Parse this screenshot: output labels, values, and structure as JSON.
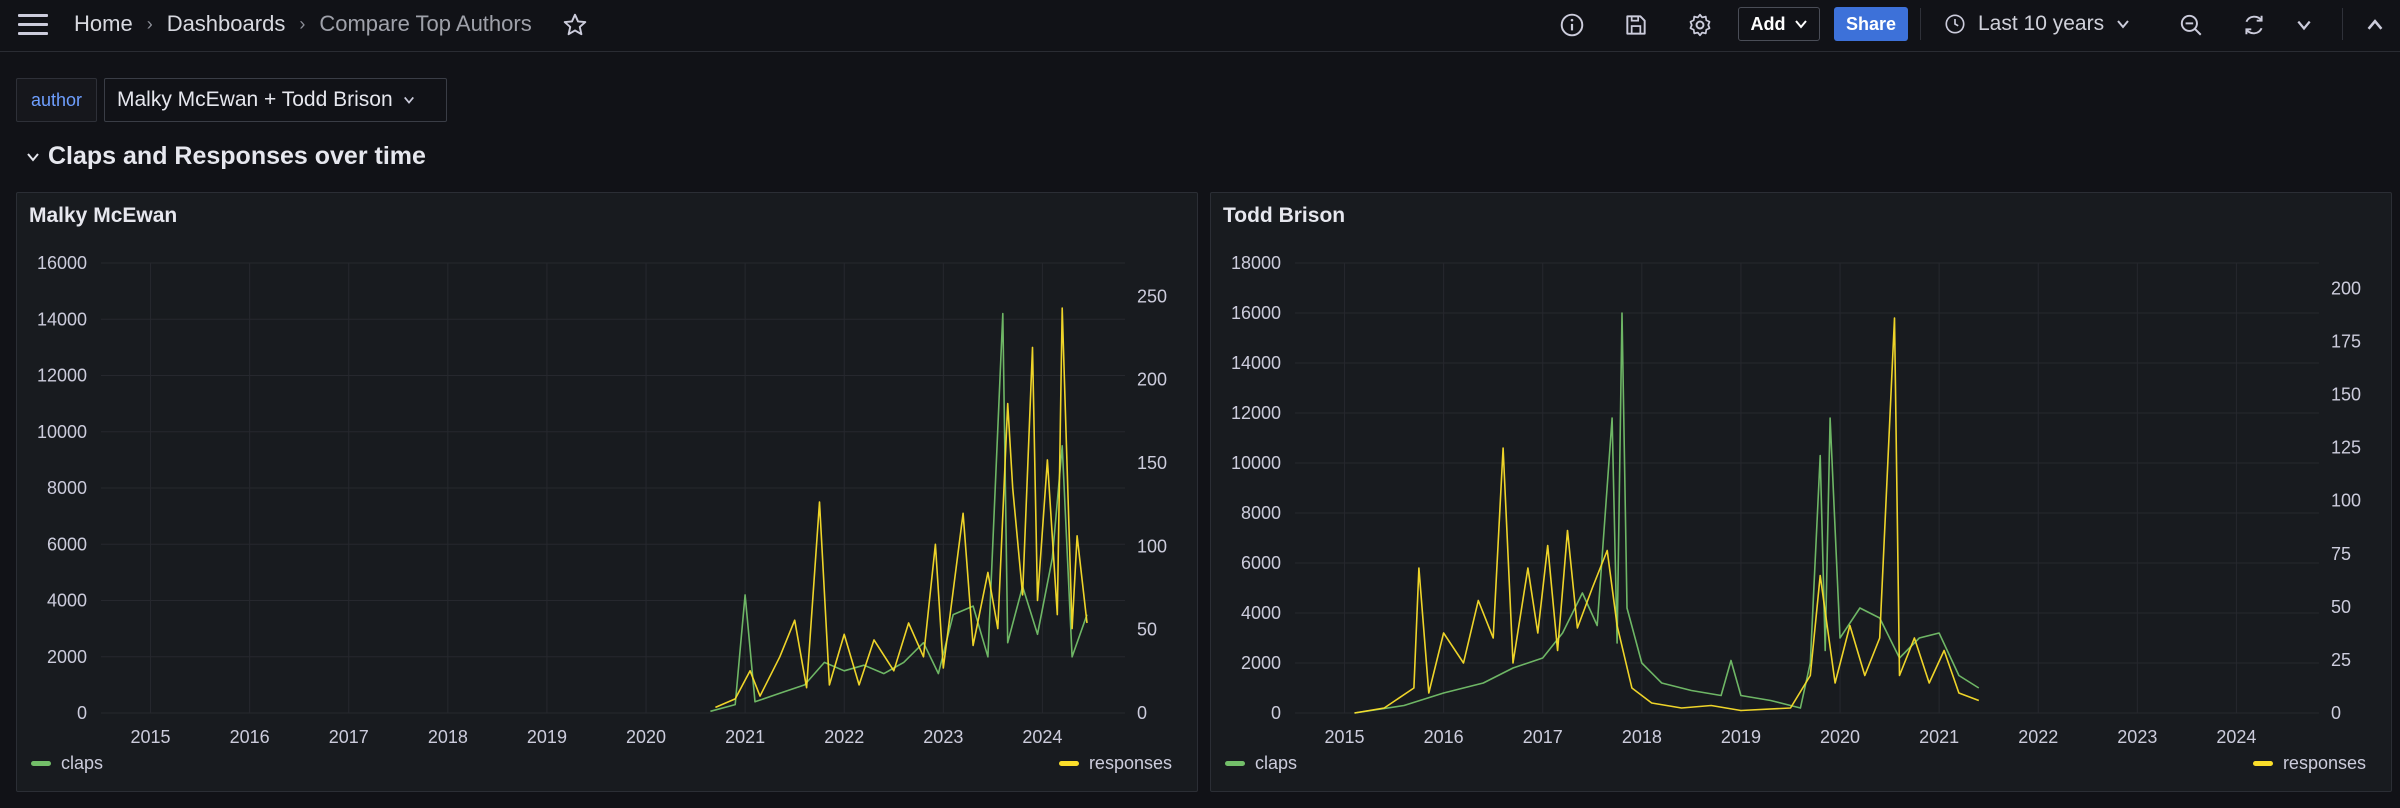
{
  "breadcrumb": {
    "home": "Home",
    "dashboards": "Dashboards",
    "current": "Compare Top Authors"
  },
  "toolbar": {
    "add_label": "Add",
    "share_label": "Share",
    "time_range": "Last 10 years"
  },
  "variable": {
    "label": "author",
    "value": "Malky McEwan + Todd Brison"
  },
  "row": {
    "title": "Claps and Responses over time"
  },
  "colors": {
    "claps": "#73bf69",
    "responses": "#fade2a"
  },
  "chart_data": [
    {
      "type": "line",
      "title": "Malky McEwan",
      "x_ticks": [
        "2015",
        "2016",
        "2017",
        "2018",
        "2019",
        "2020",
        "2021",
        "2022",
        "2023",
        "2024"
      ],
      "xlim": [
        "2014-07",
        "2024-11"
      ],
      "y_left": {
        "ticks": [
          "0",
          "2000",
          "4000",
          "6000",
          "8000",
          "10000",
          "12000",
          "14000",
          "16000"
        ],
        "ylim": [
          0,
          16000
        ]
      },
      "y_right": {
        "ticks": [
          "0",
          "50",
          "100",
          "150",
          "200",
          "250"
        ],
        "ylim": [
          0,
          270
        ]
      },
      "series": [
        {
          "name": "claps",
          "axis": "left",
          "data": [
            [
              2020.65,
              60
            ],
            [
              2020.9,
              300
            ],
            [
              2021.0,
              4200
            ],
            [
              2021.1,
              400
            ],
            [
              2021.35,
              700
            ],
            [
              2021.6,
              1000
            ],
            [
              2021.8,
              1800
            ],
            [
              2022.0,
              1500
            ],
            [
              2022.2,
              1700
            ],
            [
              2022.4,
              1400
            ],
            [
              2022.6,
              1800
            ],
            [
              2022.8,
              2500
            ],
            [
              2022.95,
              1400
            ],
            [
              2023.1,
              3500
            ],
            [
              2023.3,
              3800
            ],
            [
              2023.45,
              2000
            ],
            [
              2023.6,
              14200
            ],
            [
              2023.65,
              2500
            ],
            [
              2023.8,
              4500
            ],
            [
              2023.95,
              2800
            ],
            [
              2024.1,
              5500
            ],
            [
              2024.2,
              9500
            ],
            [
              2024.3,
              2000
            ],
            [
              2024.45,
              3500
            ]
          ]
        },
        {
          "name": "responses",
          "axis": "left",
          "data": [
            [
              2020.7,
              200
            ],
            [
              2020.9,
              500
            ],
            [
              2021.05,
              1500
            ],
            [
              2021.15,
              600
            ],
            [
              2021.35,
              2000
            ],
            [
              2021.5,
              3300
            ],
            [
              2021.62,
              900
            ],
            [
              2021.75,
              7500
            ],
            [
              2021.85,
              1000
            ],
            [
              2022.0,
              2800
            ],
            [
              2022.15,
              1000
            ],
            [
              2022.3,
              2600
            ],
            [
              2022.5,
              1500
            ],
            [
              2022.65,
              3200
            ],
            [
              2022.8,
              2000
            ],
            [
              2022.92,
              6000
            ],
            [
              2023.0,
              1600
            ],
            [
              2023.2,
              7100
            ],
            [
              2023.3,
              2400
            ],
            [
              2023.45,
              5000
            ],
            [
              2023.55,
              3000
            ],
            [
              2023.65,
              11000
            ],
            [
              2023.7,
              8000
            ],
            [
              2023.8,
              4200
            ],
            [
              2023.9,
              13000
            ],
            [
              2023.95,
              4000
            ],
            [
              2024.05,
              9000
            ],
            [
              2024.15,
              3500
            ],
            [
              2024.2,
              14400
            ],
            [
              2024.3,
              3000
            ],
            [
              2024.35,
              6300
            ],
            [
              2024.45,
              3200
            ]
          ]
        }
      ],
      "legend": [
        {
          "label": "claps",
          "color": "#73bf69",
          "position": "bottom-left"
        },
        {
          "label": "responses",
          "color": "#fade2a",
          "position": "bottom-right"
        }
      ]
    },
    {
      "type": "line",
      "title": "Todd Brison",
      "x_ticks": [
        "2015",
        "2016",
        "2017",
        "2018",
        "2019",
        "2020",
        "2021",
        "2022",
        "2023",
        "2024"
      ],
      "xlim": [
        "2014-07",
        "2024-11"
      ],
      "y_left": {
        "ticks": [
          "0",
          "2000",
          "4000",
          "6000",
          "8000",
          "10000",
          "12000",
          "14000",
          "16000",
          "18000"
        ],
        "ylim": [
          0,
          18000
        ]
      },
      "y_right": {
        "ticks": [
          "0",
          "25",
          "50",
          "75",
          "100",
          "125",
          "150",
          "175",
          "200"
        ],
        "ylim": [
          0,
          212
        ]
      },
      "series": [
        {
          "name": "claps",
          "axis": "left",
          "data": [
            [
              2015.1,
              0
            ],
            [
              2015.6,
              300
            ],
            [
              2016.0,
              800
            ],
            [
              2016.4,
              1200
            ],
            [
              2016.7,
              1800
            ],
            [
              2017.0,
              2200
            ],
            [
              2017.2,
              3200
            ],
            [
              2017.4,
              4800
            ],
            [
              2017.55,
              3500
            ],
            [
              2017.7,
              11800
            ],
            [
              2017.75,
              2800
            ],
            [
              2017.8,
              16000
            ],
            [
              2017.85,
              4200
            ],
            [
              2018.0,
              2000
            ],
            [
              2018.2,
              1200
            ],
            [
              2018.5,
              900
            ],
            [
              2018.8,
              700
            ],
            [
              2018.9,
              2100
            ],
            [
              2019.0,
              700
            ],
            [
              2019.3,
              500
            ],
            [
              2019.6,
              200
            ],
            [
              2019.7,
              2000
            ],
            [
              2019.8,
              10300
            ],
            [
              2019.85,
              2500
            ],
            [
              2019.9,
              11800
            ],
            [
              2020.0,
              3000
            ],
            [
              2020.2,
              4200
            ],
            [
              2020.4,
              3800
            ],
            [
              2020.6,
              2200
            ],
            [
              2020.8,
              3000
            ],
            [
              2021.0,
              3200
            ],
            [
              2021.2,
              1500
            ],
            [
              2021.4,
              1000
            ]
          ]
        },
        {
          "name": "responses",
          "axis": "left",
          "data": [
            [
              2015.1,
              0
            ],
            [
              2015.4,
              200
            ],
            [
              2015.7,
              1000
            ],
            [
              2015.75,
              5800
            ],
            [
              2015.85,
              800
            ],
            [
              2016.0,
              3200
            ],
            [
              2016.2,
              2000
            ],
            [
              2016.35,
              4500
            ],
            [
              2016.5,
              3000
            ],
            [
              2016.6,
              10600
            ],
            [
              2016.7,
              2000
            ],
            [
              2016.85,
              5800
            ],
            [
              2016.95,
              3200
            ],
            [
              2017.05,
              6700
            ],
            [
              2017.15,
              2500
            ],
            [
              2017.25,
              7300
            ],
            [
              2017.35,
              3400
            ],
            [
              2017.5,
              5000
            ],
            [
              2017.65,
              6500
            ],
            [
              2017.75,
              3500
            ],
            [
              2017.9,
              1000
            ],
            [
              2018.1,
              400
            ],
            [
              2018.4,
              200
            ],
            [
              2018.7,
              300
            ],
            [
              2019.0,
              100
            ],
            [
              2019.5,
              200
            ],
            [
              2019.7,
              1500
            ],
            [
              2019.8,
              5500
            ],
            [
              2019.95,
              1200
            ],
            [
              2020.1,
              3500
            ],
            [
              2020.25,
              1500
            ],
            [
              2020.4,
              3000
            ],
            [
              2020.55,
              15800
            ],
            [
              2020.6,
              1500
            ],
            [
              2020.75,
              3000
            ],
            [
              2020.9,
              1200
            ],
            [
              2021.05,
              2500
            ],
            [
              2021.2,
              800
            ],
            [
              2021.4,
              500
            ]
          ]
        }
      ],
      "legend": [
        {
          "label": "claps",
          "color": "#73bf69",
          "position": "bottom-left"
        },
        {
          "label": "responses",
          "color": "#fade2a",
          "position": "bottom-right"
        }
      ]
    }
  ]
}
